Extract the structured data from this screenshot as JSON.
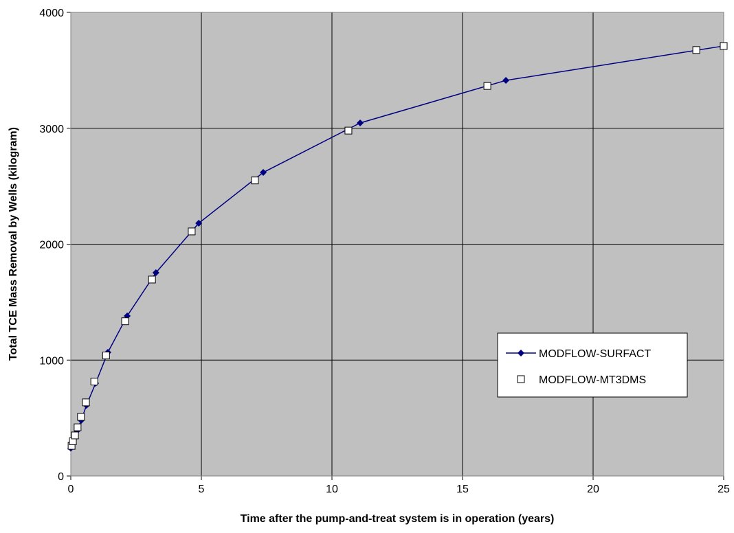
{
  "chart_data": {
    "type": "scatter",
    "xlabel": "Time after the pump-and-treat system is in operation (years)",
    "ylabel": "Total TCE Mass Removal by Wells (kilogram)",
    "xlim": [
      0,
      25
    ],
    "xticks": [
      0,
      5,
      10,
      15,
      20,
      25
    ],
    "ylim": [
      0,
      4000
    ],
    "yticks": [
      0,
      1000,
      2000,
      3000,
      4000
    ],
    "grid": true,
    "legend": "right",
    "series": [
      {
        "name": "MODFLOW-SURFACT",
        "color": "#000080",
        "line": true,
        "marker": "diamond",
        "x": [
          0,
          0.05,
          0.13,
          0.24,
          0.4,
          0.6,
          0.95,
          1.42,
          2.16,
          3.26,
          4.9,
          7.37,
          11.08,
          16.66,
          25
        ],
        "values": [
          240,
          280,
          330,
          390,
          480,
          610,
          800,
          1067,
          1381,
          1754,
          2181,
          2619,
          3046,
          3413,
          3710
        ]
      },
      {
        "name": "MODFLOW-MT3DMS",
        "color": "#000000",
        "line": false,
        "marker": "square",
        "x": [
          0.03,
          0.08,
          0.16,
          0.26,
          0.39,
          0.58,
          0.9,
          1.35,
          2.08,
          3.11,
          4.63,
          7.05,
          10.63,
          15.95,
          23.95,
          25
        ],
        "values": [
          260,
          300,
          350,
          420,
          510,
          635,
          815,
          1040,
          1335,
          1695,
          2110,
          2550,
          2980,
          3365,
          3675,
          3710
        ]
      }
    ]
  }
}
